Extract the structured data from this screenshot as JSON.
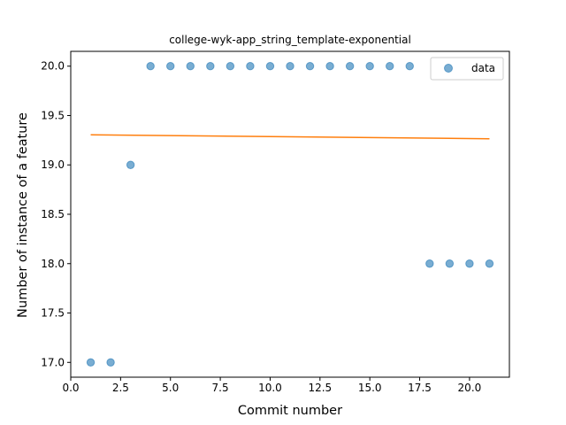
{
  "chart_data": {
    "type": "scatter",
    "title": "college-wyk-app_string_template-exponential",
    "xlabel": "Commit number",
    "ylabel": "Number of instance of a feature",
    "xlim": [
      0,
      22
    ],
    "ylim": [
      16.85,
      20.15
    ],
    "xticks": [
      0.0,
      2.5,
      5.0,
      7.5,
      10.0,
      12.5,
      15.0,
      17.5,
      20.0
    ],
    "xtick_labels": [
      "0.0",
      "2.5",
      "5.0",
      "7.5",
      "10.0",
      "12.5",
      "15.0",
      "17.5",
      "20.0"
    ],
    "yticks": [
      17.0,
      17.5,
      18.0,
      18.5,
      19.0,
      19.5,
      20.0
    ],
    "ytick_labels": [
      "17.0",
      "17.5",
      "18.0",
      "18.5",
      "19.0",
      "19.5",
      "20.0"
    ],
    "grid": false,
    "legend_position": "top-right",
    "series": [
      {
        "name": "data",
        "kind": "scatter",
        "color": "#1f77b4",
        "x": [
          1,
          2,
          3,
          4,
          5,
          6,
          7,
          8,
          9,
          10,
          11,
          12,
          13,
          14,
          15,
          16,
          17,
          18,
          19,
          20,
          21
        ],
        "y": [
          17,
          17,
          19,
          20,
          20,
          20,
          20,
          20,
          20,
          20,
          20,
          20,
          20,
          20,
          20,
          20,
          20,
          18,
          18,
          18,
          18
        ]
      },
      {
        "kind": "line",
        "color": "#ff7f0e",
        "x": [
          1,
          21
        ],
        "y": [
          19.305,
          19.265
        ]
      }
    ]
  }
}
